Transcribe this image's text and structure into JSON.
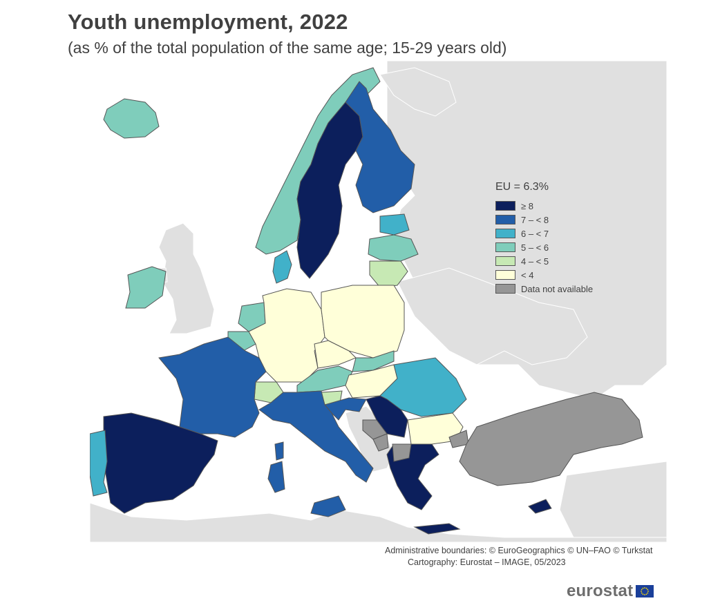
{
  "header": {
    "title": "Youth unemployment, 2022",
    "subtitle": "(as % of the total population of the same age; 15-29 years old)"
  },
  "legend": {
    "title": "EU = 6.3%",
    "items": [
      {
        "label": "≥ 8",
        "color": "#0c1f5c"
      },
      {
        "label": "7 – < 8",
        "color": "#225ea8"
      },
      {
        "label": "6 – < 7",
        "color": "#41b1c9"
      },
      {
        "label": "5 – < 6",
        "color": "#7fcdbb"
      },
      {
        "label": "4 – < 5",
        "color": "#c7e9b4"
      },
      {
        "label": "< 4",
        "color": "#ffffd9"
      },
      {
        "label": "Data not available",
        "color": "#969696"
      }
    ]
  },
  "colors": {
    "non_eu_land": "#e0e0e0",
    "sea": "#ffffff",
    "border": "#555555"
  },
  "credits": {
    "line1": "Administrative boundaries: © EuroGeographics © UN–FAO © Turkstat",
    "line2": "Cartography: Eurostat – IMAGE, 05/2023"
  },
  "brand": {
    "name": "eurostat",
    "flag_icon": "eu-flag-icon"
  }
}
